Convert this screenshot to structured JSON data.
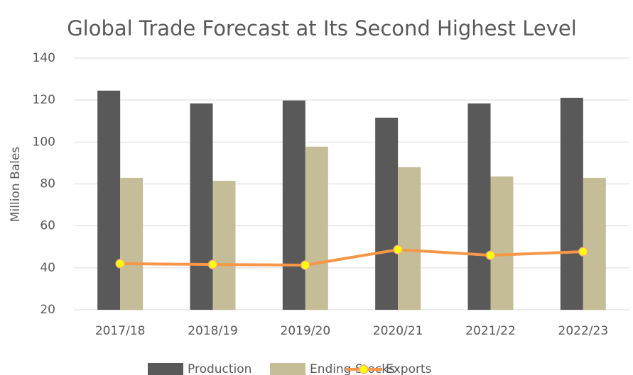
{
  "chart_data": {
    "type": "bar",
    "title": "Global Trade Forecast at Its Second Highest Level",
    "y_label": "Million Bales",
    "categories": [
      "2017/18",
      "2018/19",
      "2019/20",
      "2020/21",
      "2021/22",
      "2022/23"
    ],
    "series": [
      {
        "name": "Production",
        "type": "bar",
        "color": "#595959",
        "values": [
          124.5,
          118.4,
          119.8,
          111.6,
          118.4,
          121.1
        ]
      },
      {
        "name": "Ending Stocks",
        "type": "bar",
        "color": "#c4bd97",
        "values": [
          82.9,
          81.5,
          97.8,
          88.0,
          83.6,
          82.9
        ]
      },
      {
        "name": "Exports",
        "type": "line",
        "color": "#f79646",
        "marker_color": "#ffff00",
        "values": [
          42.0,
          41.6,
          41.3,
          48.7,
          46.0,
          47.7
        ]
      }
    ],
    "ylim": [
      20,
      140
    ],
    "yticks": [
      20,
      40,
      60,
      80,
      100,
      120,
      140
    ],
    "grid": true,
    "legend": "bottom"
  }
}
